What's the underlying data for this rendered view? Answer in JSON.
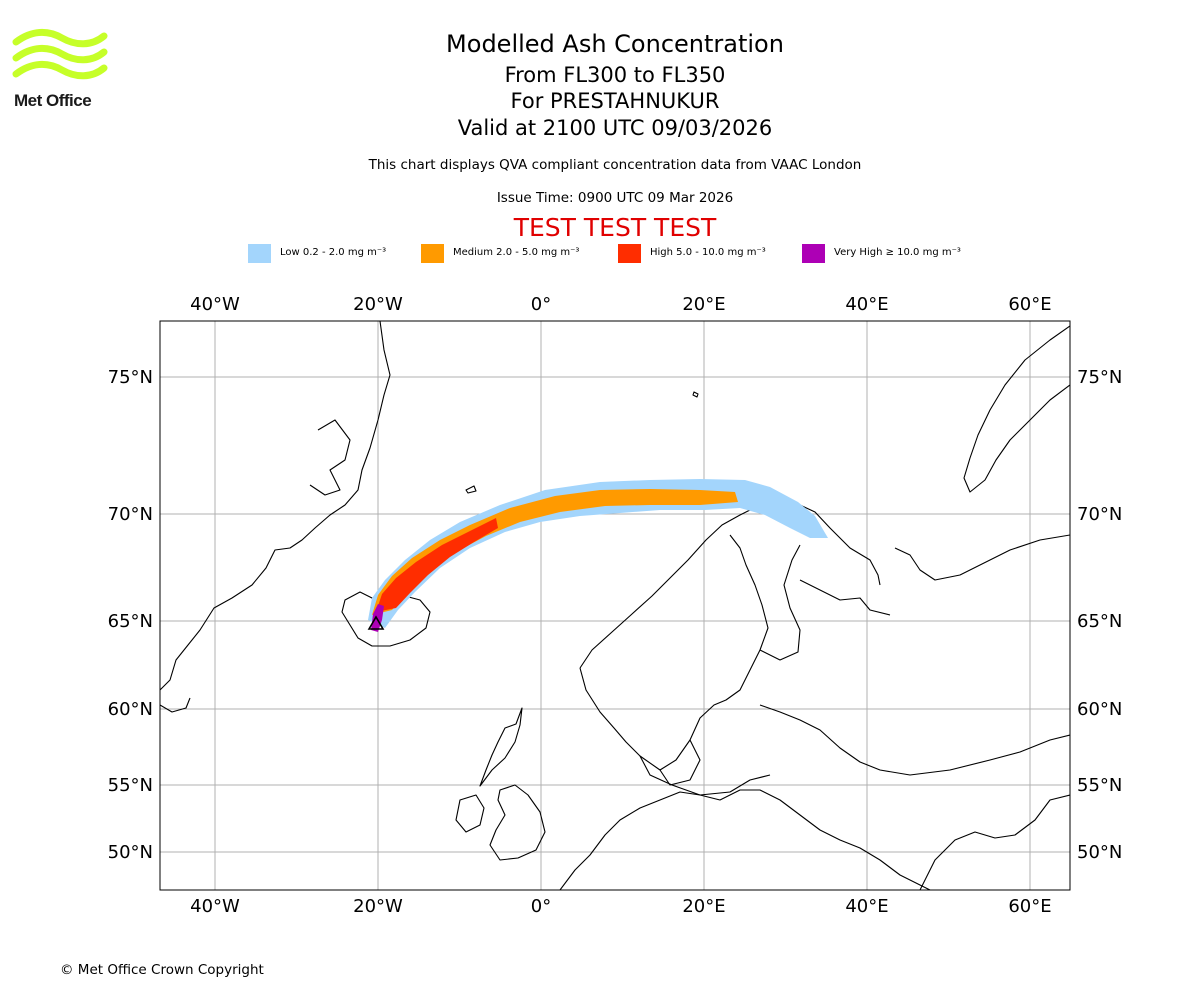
{
  "logo": {
    "name": "Met Office",
    "accent": "#c6ff29"
  },
  "header": {
    "title": "Modelled Ash Concentration",
    "levels": "From FL300 to FL350",
    "volcano": "For PRESTAHNUKUR",
    "valid": "Valid at 2100 UTC 09/03/2026",
    "description": "This chart displays QVA compliant concentration data from VAAC London",
    "issue": "Issue Time: 0900 UTC 09 Mar 2026",
    "test": "TEST TEST TEST"
  },
  "legend": [
    {
      "label": "Low 0.2 - 2.0 mg m⁻³",
      "color": "#a3d5fc"
    },
    {
      "label": "Medium 2.0 - 5.0 mg m⁻³",
      "color": "#ff9a00"
    },
    {
      "label": "High 5.0 - 10.0 mg m⁻³",
      "color": "#ff2d00"
    },
    {
      "label": "Very High ≥ 10.0 mg m⁻³",
      "color": "#ad00b5"
    }
  ],
  "map": {
    "longitude_labels": [
      "40°W",
      "20°W",
      "0°",
      "20°E",
      "40°E",
      "60°E"
    ],
    "latitude_labels": [
      "75°N",
      "70°N",
      "65°N",
      "60°N",
      "55°N",
      "50°N"
    ],
    "lon_range": [
      -46.5,
      65
    ],
    "lat_range": [
      48,
      77
    ]
  },
  "footer": {
    "copyright": "© Met Office Crown Copyright"
  }
}
